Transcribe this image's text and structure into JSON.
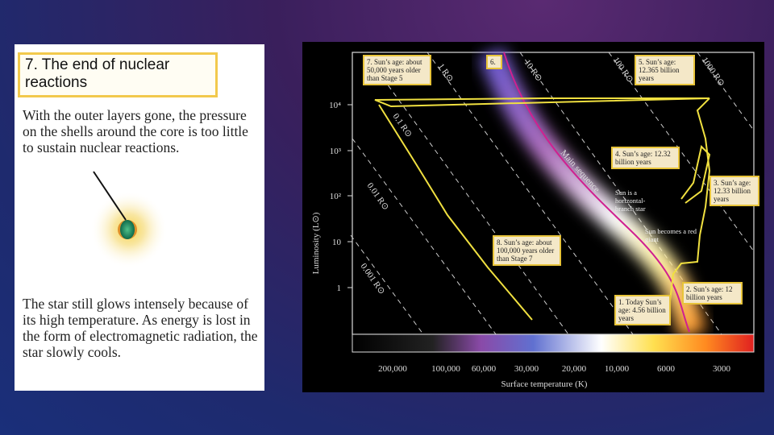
{
  "left_panel": {
    "heading": "7. The end of nuclear reactions",
    "paragraph_1": "With the outer layers gone, the pressure on the shells around the core is too little to sustain nuclear reactions.",
    "paragraph_2": "The star still glows intensely because of its high temperature. As energy is lost in the form of electromagnetic radiation, the star slowly cools."
  },
  "figure": {
    "y_axis_label": "Luminosity (L⊙)",
    "x_axis_label": "Surface temperature (K)",
    "y_ticks": [
      "10⁴",
      "10³",
      "10²",
      "10",
      "1"
    ],
    "x_ticks": [
      "200,000",
      "100,000",
      "60,000",
      "30,000",
      "20,000",
      "10,000",
      "6000",
      "3000"
    ],
    "radius_labels": [
      "0.001 R⊙",
      "0.01 R⊙",
      "0.1 R⊙",
      "1 R⊙",
      "10 R⊙",
      "100 R⊙",
      "1000 R⊙"
    ],
    "band_label": "Main sequence",
    "annotations": [
      "Sun is a horizontal-branch star",
      "Sun becomes a red giant"
    ],
    "callouts": [
      "7. Sun’s age: about 50,000 years older than Stage 5",
      "6.",
      "5. Sun’s age: 12.365 billion years",
      "4. Sun’s age: 12.32 billion years",
      "3. Sun’s age: 12.33 billion years",
      "8. Sun’s age: about 100,000 years older than Stage 7",
      "2. Sun’s age: 12 billion years",
      "1. Today Sun’s age: 4.56 billion years"
    ]
  }
}
